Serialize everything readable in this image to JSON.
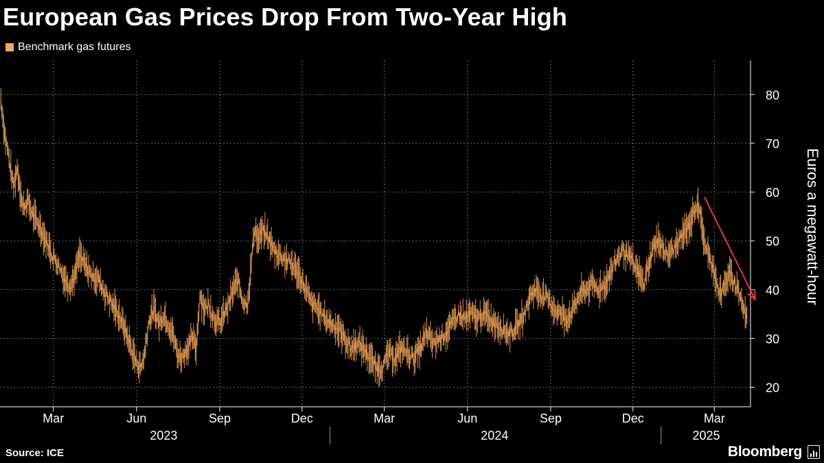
{
  "header": {
    "title": "European Gas Prices Drop From Two-Year High"
  },
  "footer": {
    "source": "Source: ICE",
    "brand": "Bloomberg"
  },
  "colors": {
    "series": "#f5a85a",
    "arrow": "#e8334a",
    "grid": "#6a6a6a"
  },
  "chart_data": {
    "type": "line",
    "title": "European Gas Prices Drop From Two-Year High",
    "ylabel": "Euros a megawatt-hour",
    "xlabel": "",
    "ylim": [
      16,
      87
    ],
    "yticks": [
      20,
      30,
      40,
      50,
      60,
      70,
      80
    ],
    "grid": true,
    "legend": "top-left",
    "x_domain": [
      "2023-01-01",
      "2025-04-10"
    ],
    "month_ticks": [
      {
        "date": "2023-03-01",
        "label": "Mar"
      },
      {
        "date": "2023-06-01",
        "label": "Jun"
      },
      {
        "date": "2023-09-01",
        "label": "Sep"
      },
      {
        "date": "2023-12-01",
        "label": "Dec"
      },
      {
        "date": "2024-03-01",
        "label": "Mar"
      },
      {
        "date": "2024-06-01",
        "label": "Jun"
      },
      {
        "date": "2024-09-01",
        "label": "Sep"
      },
      {
        "date": "2024-12-01",
        "label": "Dec"
      },
      {
        "date": "2025-03-01",
        "label": "Mar"
      }
    ],
    "year_labels": [
      {
        "label": "2023",
        "date": "2023-07-01"
      },
      {
        "label": "2024",
        "date": "2024-07-01"
      },
      {
        "label": "2025",
        "date": "2025-02-20"
      }
    ],
    "year_dividers": [
      "2024-01-01",
      "2025-01-01"
    ],
    "series": [
      {
        "name": "Benchmark gas futures",
        "points": [
          [
            "2023-01-02",
            79
          ],
          [
            "2023-01-06",
            72
          ],
          [
            "2023-01-10",
            68
          ],
          [
            "2023-01-16",
            61
          ],
          [
            "2023-01-20",
            65
          ],
          [
            "2023-01-26",
            57
          ],
          [
            "2023-02-01",
            58
          ],
          [
            "2023-02-07",
            55
          ],
          [
            "2023-02-14",
            53
          ],
          [
            "2023-02-21",
            50
          ],
          [
            "2023-02-28",
            47
          ],
          [
            "2023-03-07",
            45
          ],
          [
            "2023-03-14",
            42
          ],
          [
            "2023-03-20",
            41
          ],
          [
            "2023-03-25",
            43
          ],
          [
            "2023-03-30",
            47
          ],
          [
            "2023-04-05",
            45
          ],
          [
            "2023-04-12",
            43
          ],
          [
            "2023-04-20",
            42
          ],
          [
            "2023-04-28",
            39
          ],
          [
            "2023-05-05",
            37
          ],
          [
            "2023-05-12",
            35
          ],
          [
            "2023-05-19",
            32
          ],
          [
            "2023-05-26",
            28
          ],
          [
            "2023-06-01",
            25
          ],
          [
            "2023-06-06",
            24
          ],
          [
            "2023-06-10",
            27
          ],
          [
            "2023-06-14",
            33
          ],
          [
            "2023-06-20",
            36
          ],
          [
            "2023-06-26",
            33
          ],
          [
            "2023-07-01",
            35
          ],
          [
            "2023-07-06",
            33
          ],
          [
            "2023-07-11",
            31
          ],
          [
            "2023-07-16",
            27
          ],
          [
            "2023-07-21",
            26
          ],
          [
            "2023-07-27",
            28
          ],
          [
            "2023-08-02",
            30
          ],
          [
            "2023-08-06",
            28
          ],
          [
            "2023-08-10",
            39
          ],
          [
            "2023-08-15",
            36
          ],
          [
            "2023-08-20",
            37
          ],
          [
            "2023-08-26",
            34
          ],
          [
            "2023-09-01",
            33
          ],
          [
            "2023-09-06",
            35
          ],
          [
            "2023-09-11",
            37
          ],
          [
            "2023-09-16",
            40
          ],
          [
            "2023-09-21",
            42
          ],
          [
            "2023-09-26",
            38
          ],
          [
            "2023-10-01",
            37
          ],
          [
            "2023-10-04",
            41
          ],
          [
            "2023-10-07",
            48
          ],
          [
            "2023-10-10",
            53
          ],
          [
            "2023-10-13",
            50
          ],
          [
            "2023-10-18",
            52
          ],
          [
            "2023-10-24",
            51
          ],
          [
            "2023-10-31",
            48
          ],
          [
            "2023-11-07",
            47
          ],
          [
            "2023-11-14",
            46
          ],
          [
            "2023-11-21",
            45
          ],
          [
            "2023-11-28",
            43
          ],
          [
            "2023-12-05",
            40
          ],
          [
            "2023-12-12",
            37
          ],
          [
            "2023-12-19",
            36
          ],
          [
            "2023-12-27",
            34
          ],
          [
            "2024-01-03",
            33
          ],
          [
            "2024-01-10",
            32
          ],
          [
            "2024-01-17",
            30
          ],
          [
            "2024-01-24",
            28
          ],
          [
            "2024-01-31",
            29
          ],
          [
            "2024-02-07",
            28
          ],
          [
            "2024-02-14",
            26
          ],
          [
            "2024-02-21",
            24
          ],
          [
            "2024-02-28",
            24
          ],
          [
            "2024-03-06",
            27
          ],
          [
            "2024-03-13",
            26
          ],
          [
            "2024-03-20",
            28
          ],
          [
            "2024-03-27",
            27
          ],
          [
            "2024-04-03",
            26
          ],
          [
            "2024-04-10",
            28
          ],
          [
            "2024-04-17",
            31
          ],
          [
            "2024-04-24",
            29
          ],
          [
            "2024-05-01",
            30
          ],
          [
            "2024-05-08",
            31
          ],
          [
            "2024-05-15",
            33
          ],
          [
            "2024-05-22",
            35
          ],
          [
            "2024-05-29",
            34
          ],
          [
            "2024-06-05",
            35
          ],
          [
            "2024-06-12",
            34
          ],
          [
            "2024-06-19",
            35
          ],
          [
            "2024-06-26",
            34
          ],
          [
            "2024-07-03",
            33
          ],
          [
            "2024-07-10",
            32
          ],
          [
            "2024-07-17",
            31
          ],
          [
            "2024-07-24",
            32
          ],
          [
            "2024-07-31",
            34
          ],
          [
            "2024-08-05",
            36
          ],
          [
            "2024-08-10",
            39
          ],
          [
            "2024-08-15",
            40
          ],
          [
            "2024-08-22",
            39
          ],
          [
            "2024-08-29",
            38
          ],
          [
            "2024-09-05",
            36
          ],
          [
            "2024-09-12",
            35
          ],
          [
            "2024-09-19",
            34
          ],
          [
            "2024-09-26",
            36
          ],
          [
            "2024-10-03",
            39
          ],
          [
            "2024-10-10",
            40
          ],
          [
            "2024-10-17",
            41
          ],
          [
            "2024-10-24",
            40
          ],
          [
            "2024-10-31",
            41
          ],
          [
            "2024-11-05",
            43
          ],
          [
            "2024-11-10",
            45
          ],
          [
            "2024-11-15",
            47
          ],
          [
            "2024-11-20",
            48
          ],
          [
            "2024-11-26",
            47
          ],
          [
            "2024-12-02",
            45
          ],
          [
            "2024-12-08",
            43
          ],
          [
            "2024-12-13",
            41
          ],
          [
            "2024-12-18",
            45
          ],
          [
            "2024-12-24",
            49
          ],
          [
            "2024-12-31",
            50
          ],
          [
            "2025-01-07",
            47
          ],
          [
            "2025-01-14",
            48
          ],
          [
            "2025-01-21",
            50
          ],
          [
            "2025-01-28",
            52
          ],
          [
            "2025-02-03",
            54
          ],
          [
            "2025-02-08",
            57
          ],
          [
            "2025-02-11",
            58
          ],
          [
            "2025-02-14",
            54
          ],
          [
            "2025-02-18",
            50
          ],
          [
            "2025-02-24",
            46
          ],
          [
            "2025-03-01",
            44
          ],
          [
            "2025-03-05",
            40
          ],
          [
            "2025-03-09",
            39
          ],
          [
            "2025-03-14",
            42
          ],
          [
            "2025-03-19",
            43
          ],
          [
            "2025-03-24",
            41
          ],
          [
            "2025-03-28",
            40
          ],
          [
            "2025-04-01",
            37
          ],
          [
            "2025-04-04",
            35
          ],
          [
            "2025-04-07",
            34
          ]
        ]
      }
    ],
    "annotations": [
      {
        "type": "arrow",
        "from": [
          "2025-02-18",
          59
        ],
        "to": [
          "2025-04-15",
          38
        ]
      }
    ]
  }
}
